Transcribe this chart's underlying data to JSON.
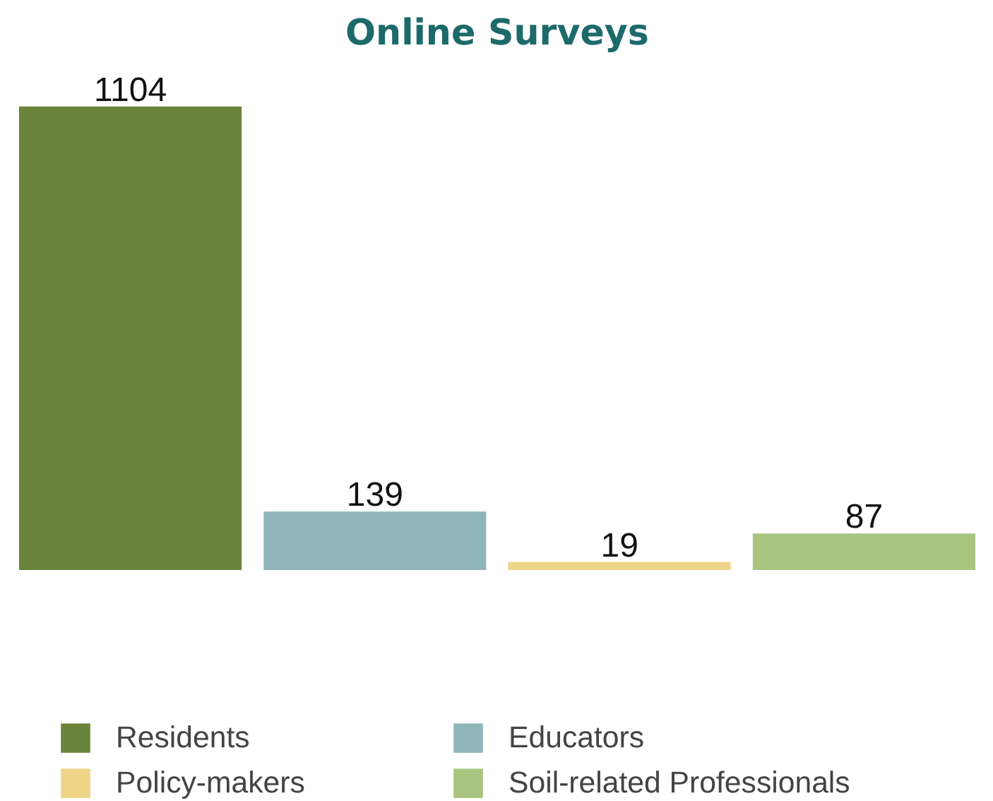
{
  "chart_data": {
    "type": "bar",
    "title": "Online Surveys",
    "categories": [
      null,
      null,
      null,
      null
    ],
    "series": [
      {
        "name": "Residents",
        "color": "#6a843a",
        "values": [
          1104,
          null,
          null,
          null
        ]
      },
      {
        "name": "Educators",
        "color": "#8fb5ba",
        "values": [
          null,
          139,
          null,
          null
        ]
      },
      {
        "name": "Policy-makers",
        "color": "#efd488",
        "values": [
          null,
          null,
          19,
          null
        ]
      },
      {
        "name": "Soil-related Professionals",
        "color": "#a9c47f",
        "values": [
          null,
          null,
          null,
          87
        ]
      }
    ],
    "stacked": true,
    "data_labels": true,
    "legend": "bottom"
  }
}
